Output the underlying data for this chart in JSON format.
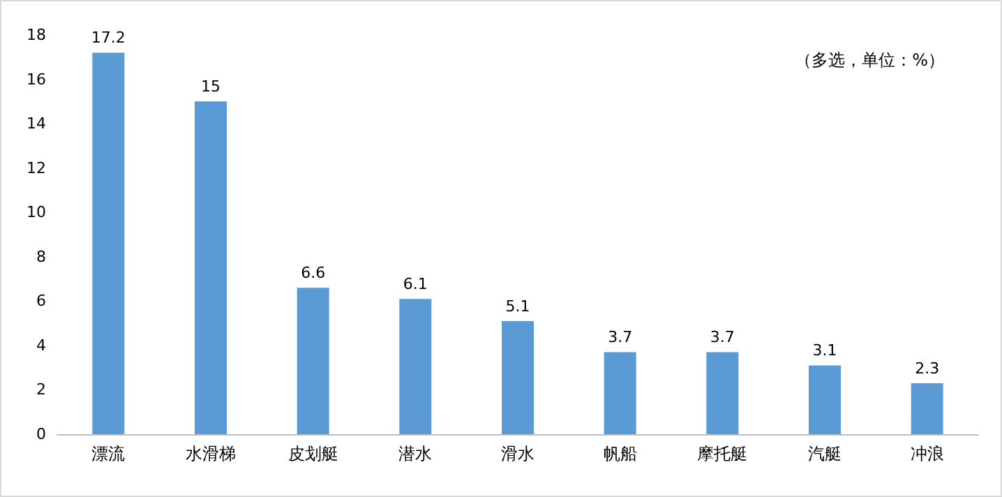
{
  "chart_data": {
    "type": "bar",
    "categories": [
      "漂流",
      "水滑梯",
      "皮划艇",
      "潜水",
      "滑水",
      "帆船",
      "摩托艇",
      "汽艇",
      "冲浪"
    ],
    "values": [
      17.2,
      15,
      6.6,
      6.1,
      5.1,
      3.7,
      3.7,
      3.1,
      2.3
    ],
    "color": "#5b9bd5",
    "ylim": [
      0,
      18
    ],
    "yticks": [
      0,
      2,
      4,
      6,
      8,
      10,
      12,
      14,
      16,
      18
    ],
    "grid": false,
    "data_labels": true,
    "annotations": [
      "（多选，单位：%）"
    ]
  }
}
